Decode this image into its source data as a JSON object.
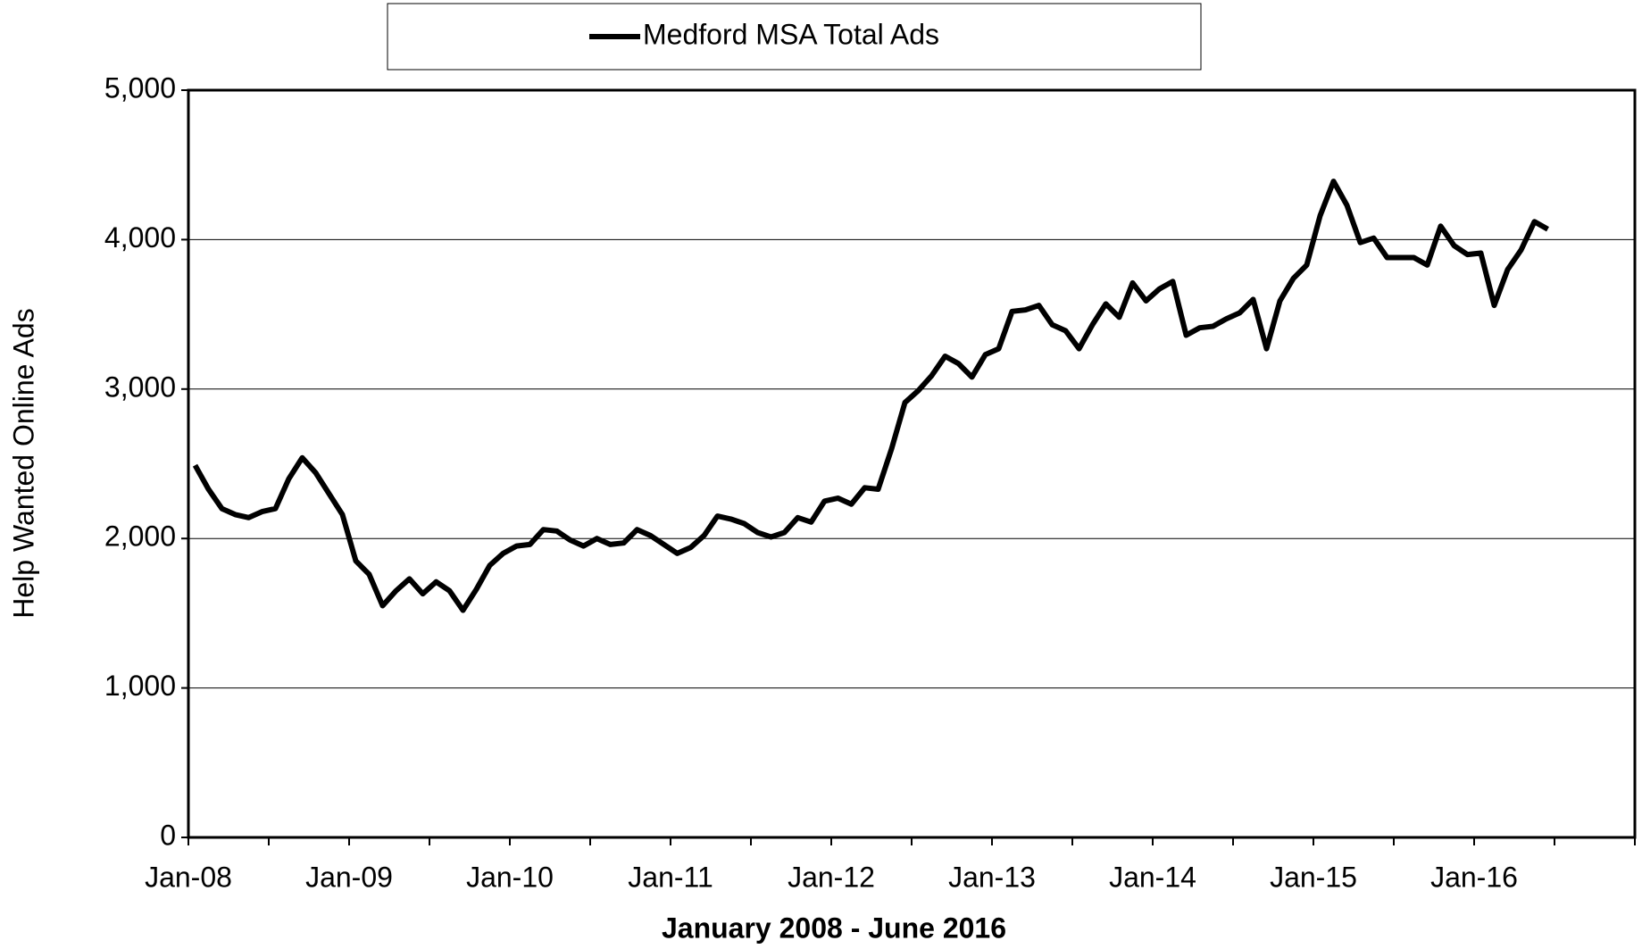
{
  "chart_data": {
    "type": "line",
    "x_label": "January 2008 - June 2016",
    "y_label": "Help Wanted Online Ads",
    "categories": [
      "Jan-08",
      null,
      null,
      null,
      null,
      null,
      null,
      null,
      null,
      null,
      null,
      null,
      "Jan-09",
      null,
      null,
      null,
      null,
      null,
      null,
      null,
      null,
      null,
      null,
      null,
      "Jan-10",
      null,
      null,
      null,
      null,
      null,
      null,
      null,
      null,
      null,
      null,
      null,
      "Jan-11",
      null,
      null,
      null,
      null,
      null,
      null,
      null,
      null,
      null,
      null,
      null,
      "Jan-12",
      null,
      null,
      null,
      null,
      null,
      null,
      null,
      null,
      null,
      null,
      null,
      "Jan-13",
      null,
      null,
      null,
      null,
      null,
      null,
      null,
      null,
      null,
      null,
      null,
      "Jan-14",
      null,
      null,
      null,
      null,
      null,
      null,
      null,
      null,
      null,
      null,
      null,
      "Jan-15",
      null,
      null,
      null,
      null,
      null,
      null,
      null,
      null,
      null,
      null,
      null,
      "Jan-16",
      null,
      null,
      null,
      null,
      null
    ],
    "series": [
      {
        "name": "Medford MSA Total Ads",
        "color": "#000000",
        "values": [
          2490,
          2330,
          2200,
          2160,
          2140,
          2180,
          2200,
          2400,
          2540,
          2440,
          2300,
          2160,
          1850,
          1760,
          1550,
          1650,
          1730,
          1630,
          1710,
          1650,
          1520,
          1660,
          1820,
          1900,
          1950,
          1960,
          2060,
          2050,
          1990,
          1950,
          2000,
          1960,
          1970,
          2060,
          2020,
          1960,
          1900,
          1940,
          2020,
          2150,
          2130,
          2100,
          2040,
          2010,
          2040,
          2140,
          2110,
          2250,
          2270,
          2230,
          2340,
          2330,
          2600,
          2910,
          2990,
          3090,
          3220,
          3170,
          3080,
          3230,
          3270,
          3520,
          3530,
          3560,
          3430,
          3390,
          3270,
          3430,
          3570,
          3480,
          3710,
          3590,
          3670,
          3720,
          3360,
          3410,
          3420,
          3470,
          3510,
          3600,
          3270,
          3590,
          3740,
          3830,
          4160,
          4390,
          4230,
          3980,
          4010,
          3880,
          3880,
          3880,
          3830,
          4090,
          3960,
          3900,
          3910,
          3560,
          3800,
          3930,
          4120,
          4070
        ]
      }
    ],
    "ylim": [
      0,
      5000
    ],
    "yticks": [
      0,
      {
        "value": 1000,
        "label": "1,000"
      },
      {
        "value": 2000,
        "label": "2,000"
      },
      {
        "value": 3000,
        "label": "3,000"
      },
      {
        "value": 4000,
        "label": "4,000"
      },
      {
        "value": 5000,
        "label": "5,000"
      }
    ],
    "grid": true,
    "legend": "top"
  }
}
